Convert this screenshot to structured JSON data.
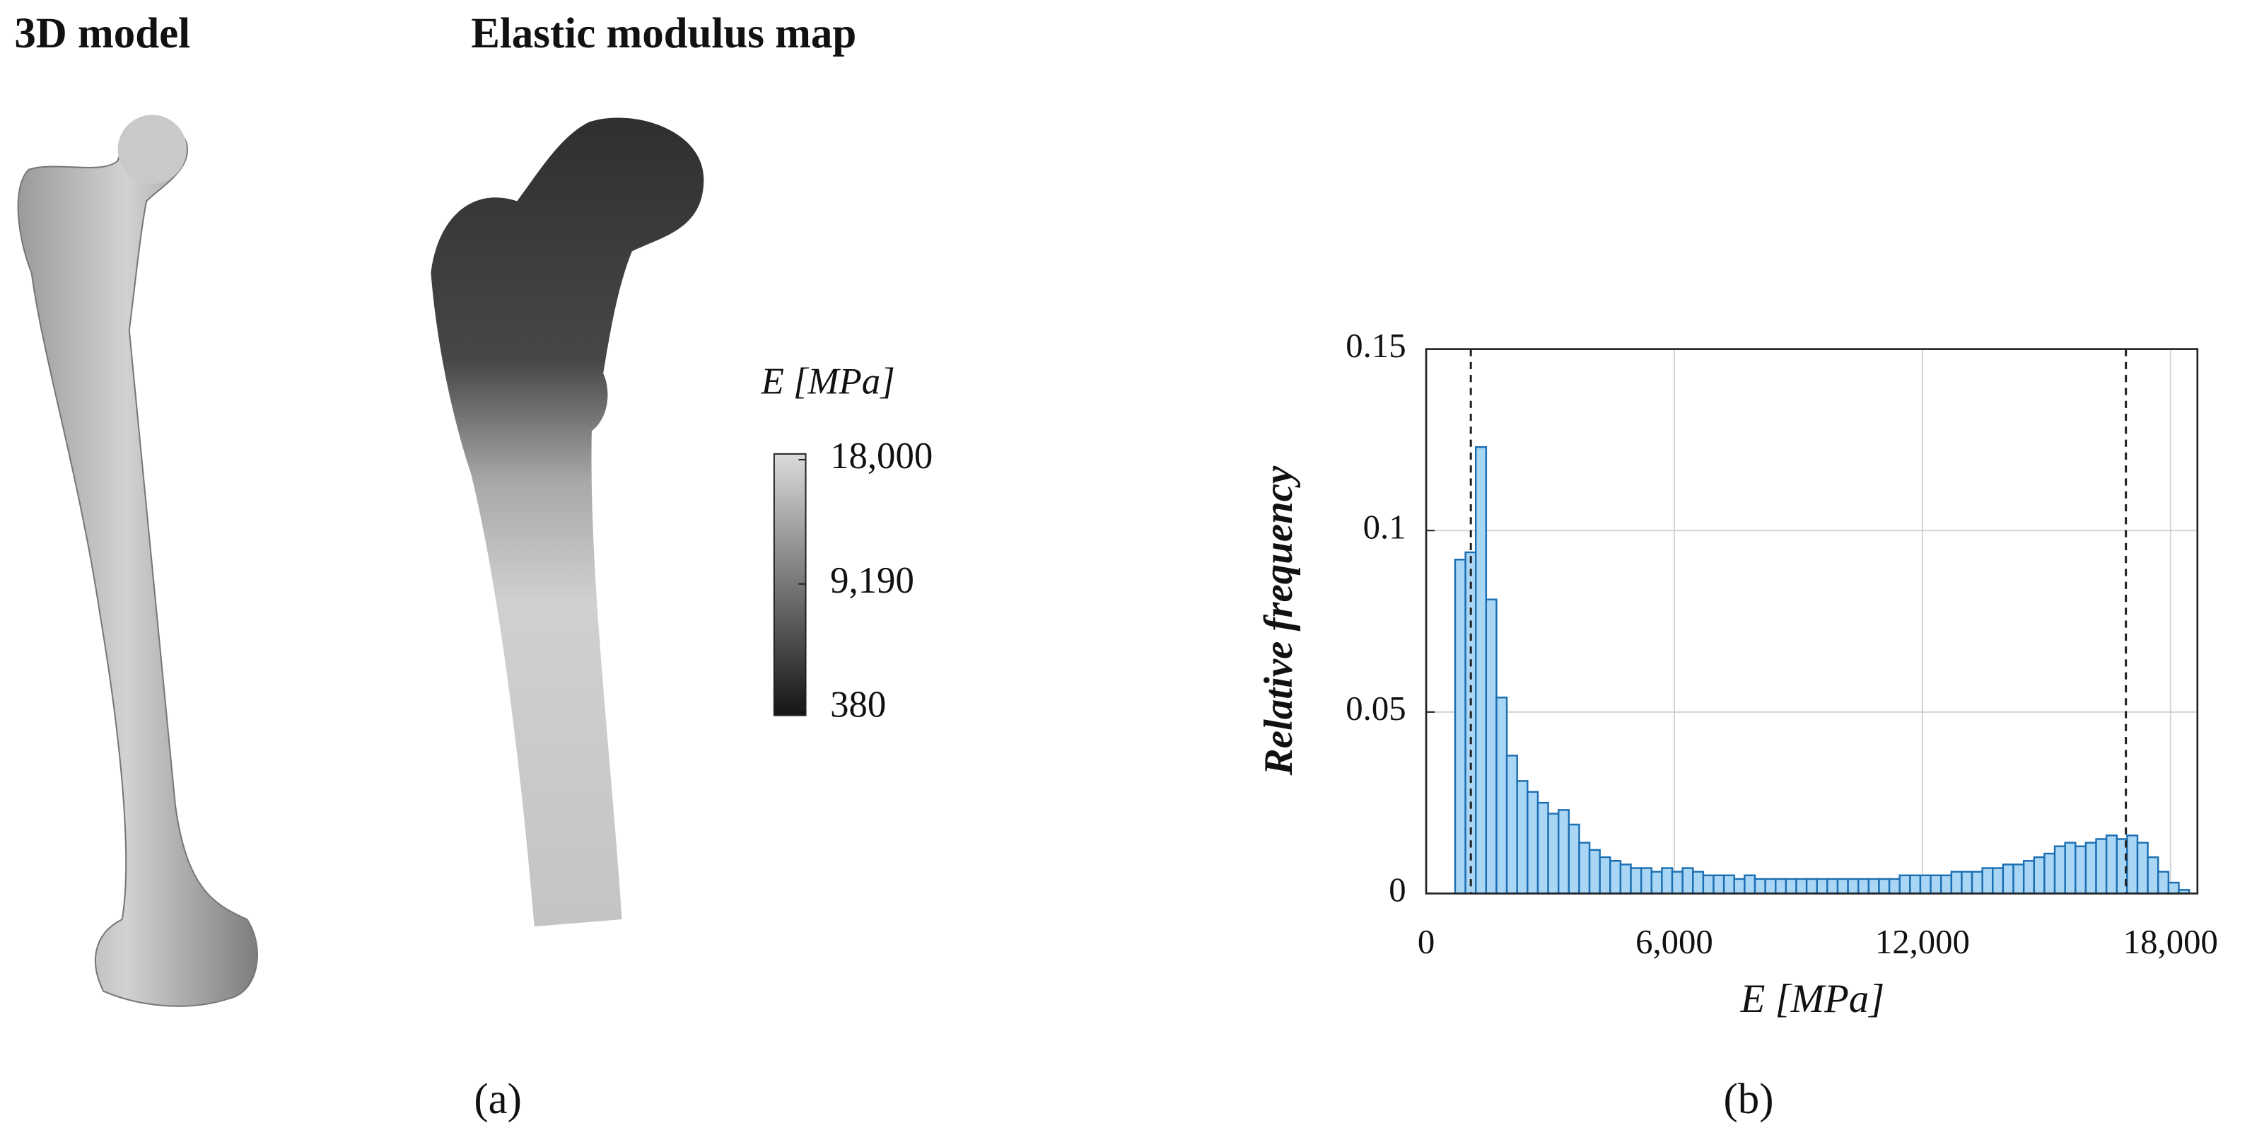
{
  "panel_a": {
    "titles": [
      "3D model",
      "Elastic modulus map"
    ],
    "colorbar": {
      "label": "E [MPa]",
      "lim": [
        380,
        18000
      ],
      "colors": [
        "#141414",
        "#dadada"
      ],
      "ticks": [
        {
          "value": 18000,
          "label": "18,000"
        },
        {
          "value": 9190,
          "label": "9,190"
        },
        380
      ]
    },
    "label": "(a)"
  },
  "chart_data": {
    "type": "histogram",
    "panel_label": "(b)",
    "xlabel": "E [MPa]",
    "ylabel": "Relative frequency",
    "bins": [
      700,
      950,
      1200,
      1450,
      1700,
      1950,
      2200,
      2450,
      2700,
      2950,
      3200,
      3450,
      3700,
      3950,
      4200,
      4450,
      4700,
      4950,
      5200,
      5450,
      5700,
      5950,
      6200,
      6450,
      6700,
      6950,
      7200,
      7450,
      7700,
      7950,
      8200,
      8450,
      8700,
      8950,
      9200,
      9450,
      9700,
      9950,
      10200,
      10450,
      10700,
      10950,
      11200,
      11450,
      11700,
      11950,
      12200,
      12450,
      12700,
      12950,
      13200,
      13450,
      13700,
      13950,
      14200,
      14450,
      14700,
      14950,
      15200,
      15450,
      15700,
      15950,
      16200,
      16450,
      16700,
      16950,
      17200,
      17450,
      17700,
      17950,
      18200,
      18450
    ],
    "values": [
      0.092,
      0.094,
      0.123,
      0.081,
      0.054,
      0.038,
      0.031,
      0.028,
      0.025,
      0.022,
      0.023,
      0.019,
      0.014,
      0.012,
      0.01,
      0.009,
      0.008,
      0.007,
      0.007,
      0.006,
      0.007,
      0.006,
      0.007,
      0.006,
      0.005,
      0.005,
      0.005,
      0.004,
      0.005,
      0.004,
      0.004,
      0.004,
      0.004,
      0.004,
      0.004,
      0.004,
      0.004,
      0.004,
      0.004,
      0.004,
      0.004,
      0.004,
      0.004,
      0.005,
      0.005,
      0.005,
      0.005,
      0.005,
      0.006,
      0.006,
      0.006,
      0.007,
      0.007,
      0.008,
      0.008,
      0.009,
      0.01,
      0.011,
      0.013,
      0.014,
      0.013,
      0.014,
      0.015,
      0.016,
      0.015,
      0.016,
      0.014,
      0.01,
      0.006,
      0.003,
      0.001
    ],
    "color": "#a9d6f5",
    "edgecolor": "#1b6fb3",
    "xlim": [
      0,
      18650
    ],
    "ylim": [
      0,
      0.15
    ],
    "xticks": [
      0,
      {
        "value": 6000,
        "label": "6,000"
      },
      {
        "value": 12000,
        "label": "12,000"
      },
      {
        "value": 18000,
        "label": "18,000"
      }
    ],
    "yticks": [
      0,
      0.05,
      0.1,
      0.15
    ],
    "grid": true,
    "vlines": [
      1080,
      16920
    ]
  }
}
